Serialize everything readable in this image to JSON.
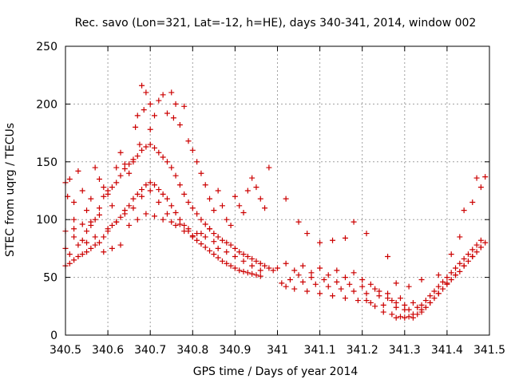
{
  "chart_data": {
    "type": "scatter",
    "title": "Rec. savo (Lon=321, Lat=-12, h=HE), days 340-341, 2014, window 002",
    "xlabel": "GPS time / Days of year 2014",
    "ylabel": "STEC from uqrg / TECUs",
    "xlim": [
      340.5,
      341.5
    ],
    "ylim": [
      0,
      250
    ],
    "grid": true,
    "marker": "plus",
    "color": "#cc0000",
    "x_ticks": [
      {
        "value": 340.5,
        "label": "340.5"
      },
      {
        "value": 340.6,
        "label": "340.6"
      },
      {
        "value": 340.7,
        "label": "340.7"
      },
      {
        "value": 340.8,
        "label": "340.8"
      },
      {
        "value": 340.9,
        "label": "340.9"
      },
      {
        "value": 341.0,
        "label": "341"
      },
      {
        "value": 341.1,
        "label": "341.1"
      },
      {
        "value": 341.2,
        "label": "341.2"
      },
      {
        "value": 341.3,
        "label": "341.3"
      },
      {
        "value": 341.4,
        "label": "341.4"
      },
      {
        "value": 341.5,
        "label": "341.5"
      }
    ],
    "y_ticks": [
      {
        "value": 0,
        "label": "0"
      },
      {
        "value": 50,
        "label": "50"
      },
      {
        "value": 100,
        "label": "100"
      },
      {
        "value": 150,
        "label": "150"
      },
      {
        "value": 200,
        "label": "200"
      },
      {
        "value": 250,
        "label": "250"
      }
    ],
    "points": [
      [
        340.5,
        132
      ],
      [
        340.505,
        120
      ],
      [
        340.51,
        135
      ],
      [
        340.52,
        115
      ],
      [
        340.52,
        100
      ],
      [
        340.53,
        142
      ],
      [
        340.54,
        125
      ],
      [
        340.55,
        108
      ],
      [
        340.56,
        118
      ],
      [
        340.57,
        145
      ],
      [
        340.58,
        135
      ],
      [
        340.59,
        128
      ],
      [
        340.6,
        122
      ],
      [
        340.61,
        112
      ],
      [
        340.62,
        145
      ],
      [
        340.63,
        158
      ],
      [
        340.64,
        148
      ],
      [
        340.65,
        140
      ],
      [
        340.66,
        152
      ],
      [
        340.665,
        180
      ],
      [
        340.67,
        190
      ],
      [
        340.675,
        165
      ],
      [
        340.68,
        216
      ],
      [
        340.685,
        195
      ],
      [
        340.69,
        210
      ],
      [
        340.7,
        200
      ],
      [
        340.7,
        178
      ],
      [
        340.71,
        190
      ],
      [
        340.72,
        203
      ],
      [
        340.73,
        208
      ],
      [
        340.74,
        192
      ],
      [
        340.75,
        210
      ],
      [
        340.755,
        188
      ],
      [
        340.76,
        200
      ],
      [
        340.77,
        182
      ],
      [
        340.78,
        198
      ],
      [
        340.79,
        168
      ],
      [
        340.8,
        160
      ],
      [
        340.81,
        150
      ],
      [
        340.82,
        140
      ],
      [
        340.83,
        130
      ],
      [
        340.84,
        118
      ],
      [
        340.85,
        108
      ],
      [
        340.86,
        125
      ],
      [
        340.87,
        112
      ],
      [
        340.88,
        100
      ],
      [
        340.89,
        95
      ],
      [
        340.9,
        120
      ],
      [
        340.91,
        112
      ],
      [
        340.92,
        106
      ],
      [
        340.93,
        125
      ],
      [
        340.94,
        136
      ],
      [
        340.95,
        128
      ],
      [
        340.96,
        118
      ],
      [
        340.97,
        110
      ],
      [
        340.98,
        145
      ],
      [
        340.5,
        75
      ],
      [
        340.51,
        70
      ],
      [
        340.52,
        85
      ],
      [
        340.53,
        78
      ],
      [
        340.54,
        82
      ],
      [
        340.55,
        90
      ],
      [
        340.56,
        95
      ],
      [
        340.57,
        100
      ],
      [
        340.58,
        110
      ],
      [
        340.59,
        120
      ],
      [
        340.6,
        125
      ],
      [
        340.61,
        128
      ],
      [
        340.62,
        132
      ],
      [
        340.63,
        138
      ],
      [
        340.64,
        144
      ],
      [
        340.65,
        148
      ],
      [
        340.66,
        150
      ],
      [
        340.67,
        155
      ],
      [
        340.68,
        160
      ],
      [
        340.69,
        163
      ],
      [
        340.7,
        165
      ],
      [
        340.71,
        162
      ],
      [
        340.72,
        158
      ],
      [
        340.73,
        154
      ],
      [
        340.74,
        150
      ],
      [
        340.75,
        145
      ],
      [
        340.76,
        138
      ],
      [
        340.77,
        130
      ],
      [
        340.78,
        122
      ],
      [
        340.79,
        115
      ],
      [
        340.8,
        110
      ],
      [
        340.81,
        105
      ],
      [
        340.82,
        100
      ],
      [
        340.83,
        96
      ],
      [
        340.84,
        92
      ],
      [
        340.85,
        88
      ],
      [
        340.86,
        85
      ],
      [
        340.87,
        82
      ],
      [
        340.88,
        80
      ],
      [
        340.89,
        78
      ],
      [
        340.9,
        75
      ],
      [
        340.91,
        72
      ],
      [
        340.92,
        70
      ],
      [
        340.93,
        68
      ],
      [
        340.94,
        66
      ],
      [
        340.95,
        64
      ],
      [
        340.96,
        62
      ],
      [
        340.97,
        60
      ],
      [
        340.98,
        58
      ],
      [
        340.99,
        56
      ],
      [
        340.5,
        60
      ],
      [
        340.51,
        62
      ],
      [
        340.52,
        65
      ],
      [
        340.53,
        68
      ],
      [
        340.54,
        70
      ],
      [
        340.55,
        72
      ],
      [
        340.56,
        75
      ],
      [
        340.57,
        78
      ],
      [
        340.58,
        80
      ],
      [
        340.59,
        85
      ],
      [
        340.6,
        90
      ],
      [
        340.61,
        95
      ],
      [
        340.62,
        98
      ],
      [
        340.63,
        102
      ],
      [
        340.64,
        108
      ],
      [
        340.65,
        112
      ],
      [
        340.66,
        118
      ],
      [
        340.67,
        122
      ],
      [
        340.68,
        126
      ],
      [
        340.69,
        130
      ],
      [
        340.7,
        132
      ],
      [
        340.71,
        130
      ],
      [
        340.72,
        126
      ],
      [
        340.73,
        122
      ],
      [
        340.74,
        118
      ],
      [
        340.75,
        112
      ],
      [
        340.76,
        106
      ],
      [
        340.77,
        100
      ],
      [
        340.78,
        95
      ],
      [
        340.79,
        90
      ],
      [
        340.8,
        86
      ],
      [
        340.81,
        82
      ],
      [
        340.82,
        79
      ],
      [
        340.83,
        76
      ],
      [
        340.84,
        73
      ],
      [
        340.85,
        70
      ],
      [
        340.86,
        67
      ],
      [
        340.87,
        64
      ],
      [
        340.88,
        62
      ],
      [
        340.89,
        60
      ],
      [
        340.9,
        58
      ],
      [
        340.91,
        56
      ],
      [
        340.92,
        55
      ],
      [
        340.93,
        54
      ],
      [
        340.94,
        53
      ],
      [
        340.95,
        52
      ],
      [
        340.96,
        51
      ],
      [
        340.5,
        90
      ],
      [
        340.52,
        92
      ],
      [
        340.54,
        96
      ],
      [
        340.56,
        98
      ],
      [
        340.58,
        104
      ],
      [
        340.6,
        92
      ],
      [
        340.62,
        98
      ],
      [
        340.64,
        105
      ],
      [
        340.66,
        110
      ],
      [
        340.68,
        120
      ],
      [
        340.7,
        125
      ],
      [
        340.72,
        115
      ],
      [
        340.74,
        105
      ],
      [
        340.76,
        95
      ],
      [
        340.78,
        90
      ],
      [
        340.8,
        85
      ],
      [
        340.82,
        88
      ],
      [
        340.84,
        92
      ],
      [
        340.86,
        75
      ],
      [
        340.88,
        72
      ],
      [
        340.9,
        68
      ],
      [
        340.92,
        64
      ],
      [
        340.94,
        60
      ],
      [
        340.96,
        56
      ],
      [
        340.55,
        80
      ],
      [
        340.57,
        85
      ],
      [
        340.59,
        72
      ],
      [
        340.61,
        75
      ],
      [
        340.63,
        78
      ],
      [
        340.65,
        95
      ],
      [
        340.67,
        100
      ],
      [
        340.69,
        105
      ],
      [
        340.71,
        103
      ],
      [
        340.73,
        100
      ],
      [
        340.75,
        98
      ],
      [
        340.77,
        96
      ],
      [
        340.79,
        92
      ],
      [
        340.81,
        88
      ],
      [
        340.83,
        85
      ],
      [
        340.85,
        81
      ],
      [
        341.01,
        45
      ],
      [
        341.02,
        42
      ],
      [
        341.03,
        48
      ],
      [
        341.04,
        40
      ],
      [
        341.05,
        52
      ],
      [
        341.06,
        46
      ],
      [
        341.07,
        38
      ],
      [
        341.08,
        50
      ],
      [
        341.09,
        44
      ],
      [
        341.1,
        36
      ],
      [
        341.11,
        48
      ],
      [
        341.12,
        42
      ],
      [
        341.13,
        34
      ],
      [
        341.14,
        46
      ],
      [
        341.15,
        40
      ],
      [
        341.16,
        32
      ],
      [
        341.17,
        44
      ],
      [
        341.18,
        38
      ],
      [
        341.19,
        30
      ],
      [
        341.2,
        42
      ],
      [
        341.21,
        36
      ],
      [
        341.22,
        28
      ],
      [
        341.23,
        40
      ],
      [
        341.24,
        34
      ],
      [
        341.25,
        26
      ],
      [
        341.26,
        36
      ],
      [
        341.27,
        30
      ],
      [
        341.28,
        24
      ],
      [
        341.29,
        32
      ],
      [
        341.3,
        26
      ],
      [
        341.31,
        22
      ],
      [
        341.32,
        28
      ],
      [
        341.33,
        24
      ],
      [
        341.34,
        26
      ],
      [
        341.35,
        30
      ],
      [
        341.36,
        34
      ],
      [
        341.37,
        38
      ],
      [
        341.38,
        42
      ],
      [
        341.39,
        46
      ],
      [
        341.4,
        50
      ],
      [
        341.41,
        54
      ],
      [
        341.42,
        58
      ],
      [
        341.43,
        62
      ],
      [
        341.44,
        66
      ],
      [
        341.45,
        70
      ],
      [
        341.46,
        74
      ],
      [
        341.47,
        78
      ],
      [
        341.48,
        82
      ],
      [
        341.0,
        58
      ],
      [
        341.02,
        62
      ],
      [
        341.04,
        56
      ],
      [
        341.06,
        60
      ],
      [
        341.08,
        54
      ],
      [
        341.1,
        58
      ],
      [
        341.12,
        52
      ],
      [
        341.14,
        56
      ],
      [
        341.16,
        50
      ],
      [
        341.18,
        54
      ],
      [
        341.2,
        48
      ],
      [
        341.22,
        44
      ],
      [
        341.24,
        38
      ],
      [
        341.26,
        32
      ],
      [
        341.28,
        28
      ],
      [
        341.3,
        22
      ],
      [
        341.32,
        18
      ],
      [
        341.34,
        22
      ],
      [
        341.36,
        28
      ],
      [
        341.38,
        36
      ],
      [
        341.4,
        44
      ],
      [
        341.42,
        52
      ],
      [
        341.44,
        60
      ],
      [
        341.46,
        68
      ],
      [
        341.48,
        76
      ],
      [
        341.21,
        30
      ],
      [
        341.23,
        25
      ],
      [
        341.25,
        20
      ],
      [
        341.27,
        18
      ],
      [
        341.28,
        15
      ],
      [
        341.29,
        16
      ],
      [
        341.3,
        15
      ],
      [
        341.31,
        16
      ],
      [
        341.32,
        15
      ],
      [
        341.33,
        18
      ],
      [
        341.34,
        20
      ],
      [
        341.35,
        24
      ],
      [
        341.36,
        28
      ],
      [
        341.37,
        32
      ],
      [
        341.38,
        36
      ],
      [
        341.39,
        40
      ],
      [
        341.4,
        45
      ],
      [
        341.41,
        48
      ],
      [
        341.42,
        52
      ],
      [
        341.43,
        55
      ],
      [
        341.44,
        60
      ],
      [
        341.45,
        64
      ],
      [
        341.46,
        68
      ],
      [
        341.47,
        72
      ],
      [
        341.48,
        76
      ],
      [
        341.49,
        80
      ],
      [
        341.02,
        118
      ],
      [
        341.05,
        98
      ],
      [
        341.07,
        88
      ],
      [
        341.1,
        80
      ],
      [
        341.13,
        82
      ],
      [
        341.16,
        84
      ],
      [
        341.18,
        98
      ],
      [
        341.21,
        88
      ],
      [
        341.26,
        68
      ],
      [
        341.28,
        45
      ],
      [
        341.31,
        42
      ],
      [
        341.34,
        48
      ],
      [
        341.38,
        52
      ],
      [
        341.41,
        70
      ],
      [
        341.43,
        85
      ],
      [
        341.44,
        108
      ],
      [
        341.46,
        115
      ],
      [
        341.47,
        136
      ],
      [
        341.48,
        128
      ],
      [
        341.49,
        137
      ]
    ]
  }
}
